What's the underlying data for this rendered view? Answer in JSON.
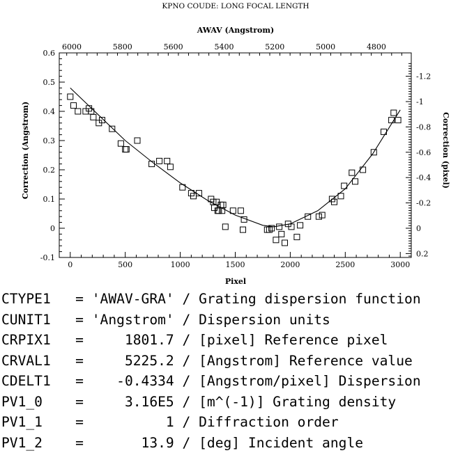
{
  "chart_data": {
    "type": "scatter",
    "title": "KPNO COUDE: LONG FOCAL LENGTH",
    "xlabel": "Pixel",
    "ylabel": "Correction (Angstrom)",
    "x2label": "AWAV (Angstrom)",
    "y2label": "Correction (pixel)",
    "xlim": [
      -100,
      3100
    ],
    "ylim": [
      -0.1,
      0.6
    ],
    "x_ticks": [
      0,
      500,
      1000,
      1500,
      2000,
      2500,
      3000
    ],
    "y_ticks": [
      -0.1,
      0,
      0.1,
      0.2,
      0.3,
      0.4,
      0.5,
      0.6
    ],
    "x2_ticks": [
      {
        "value": 6000,
        "label": "6000"
      },
      {
        "value": 5800,
        "label": "5800"
      },
      {
        "value": 5600,
        "label": "5600"
      },
      {
        "value": 5400,
        "label": "5400"
      },
      {
        "value": 5200,
        "label": "5200"
      },
      {
        "value": 5000,
        "label": "5000"
      },
      {
        "value": 4800,
        "label": "4800"
      }
    ],
    "y2_ticks": [
      {
        "value": 0.2,
        "label": "0.2"
      },
      {
        "value": 0,
        "label": "0"
      },
      {
        "value": -0.2,
        "label": "-0.2"
      },
      {
        "value": -0.4,
        "label": "-0.4"
      },
      {
        "value": -0.6,
        "label": "-0.6"
      },
      {
        "value": -0.8,
        "label": "-0.8"
      },
      {
        "value": -1,
        "label": "-1"
      },
      {
        "value": -1.2,
        "label": "-1.2"
      }
    ],
    "grid": false,
    "series": [
      {
        "marker": "open-square",
        "points": [
          [
            0,
            0.45
          ],
          [
            30,
            0.42
          ],
          [
            70,
            0.4
          ],
          [
            140,
            0.4
          ],
          [
            170,
            0.41
          ],
          [
            190,
            0.4
          ],
          [
            210,
            0.38
          ],
          [
            260,
            0.36
          ],
          [
            290,
            0.37
          ],
          [
            380,
            0.34
          ],
          [
            460,
            0.29
          ],
          [
            500,
            0.27
          ],
          [
            510,
            0.27
          ],
          [
            610,
            0.3
          ],
          [
            740,
            0.22
          ],
          [
            810,
            0.23
          ],
          [
            880,
            0.23
          ],
          [
            910,
            0.21
          ],
          [
            1020,
            0.14
          ],
          [
            1100,
            0.12
          ],
          [
            1120,
            0.11
          ],
          [
            1170,
            0.12
          ],
          [
            1280,
            0.1
          ],
          [
            1300,
            0.09
          ],
          [
            1310,
            0.07
          ],
          [
            1330,
            0.09
          ],
          [
            1340,
            0.06
          ],
          [
            1350,
            0.06
          ],
          [
            1370,
            0.08
          ],
          [
            1380,
            0.06
          ],
          [
            1390,
            0.08
          ],
          [
            1410,
            0.005
          ],
          [
            1480,
            0.06
          ],
          [
            1550,
            0.06
          ],
          [
            1580,
            0.03
          ],
          [
            1570,
            -0.005
          ],
          [
            1790,
            -0.005
          ],
          [
            1810,
            -0.005
          ],
          [
            1830,
            0.0
          ],
          [
            1870,
            -0.04
          ],
          [
            1900,
            0.005
          ],
          [
            1920,
            -0.02
          ],
          [
            1950,
            -0.05
          ],
          [
            1980,
            0.015
          ],
          [
            2010,
            0.005
          ],
          [
            2060,
            -0.03
          ],
          [
            2090,
            0.01
          ],
          [
            2160,
            0.04
          ],
          [
            2260,
            0.04
          ],
          [
            2290,
            0.045
          ],
          [
            2380,
            0.1
          ],
          [
            2400,
            0.09
          ],
          [
            2460,
            0.11
          ],
          [
            2490,
            0.145
          ],
          [
            2560,
            0.19
          ],
          [
            2590,
            0.16
          ],
          [
            2660,
            0.2
          ],
          [
            2760,
            0.26
          ],
          [
            2850,
            0.33
          ],
          [
            2920,
            0.37
          ],
          [
            2940,
            0.395
          ],
          [
            2980,
            0.37
          ]
        ]
      },
      {
        "type": "line",
        "fit": "quadratic",
        "x": [
          0,
          250,
          500,
          750,
          1000,
          1250,
          1500,
          1750,
          1850,
          2000,
          2250,
          2500,
          2750,
          3000
        ],
        "y": [
          0.48,
          0.39,
          0.3,
          0.225,
          0.155,
          0.095,
          0.045,
          0.01,
          0.005,
          0.015,
          0.06,
          0.135,
          0.255,
          0.405
        ]
      }
    ]
  },
  "header_lines": [
    "CTYPE1   = 'AWAV-GRA' / Grating dispersion function",
    "CUNIT1   = 'Angstrom' / Dispersion units",
    "CRPIX1   =     1801.7 / [pixel] Reference pixel",
    "CRVAL1   =     5225.2 / [Angstrom] Reference value",
    "CDELT1   =    -0.4334 / [Angstrom/pixel] Dispersion",
    "PV1_0    =     3.16E5 / [m^(-1)] Grating density",
    "PV1_1    =          1 / Diffraction order",
    "PV1_2    =       13.9 / [deg] Incident angle"
  ]
}
